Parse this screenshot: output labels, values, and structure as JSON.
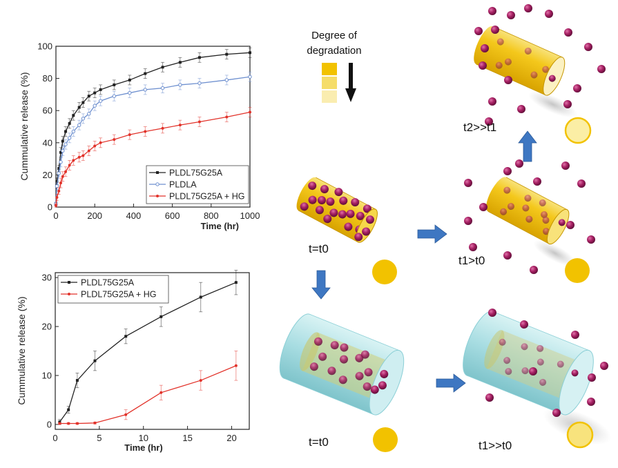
{
  "chart_data": [
    {
      "type": "line",
      "xlabel": "Time (hr)",
      "ylabel": "Cummulative release (%)",
      "xlim": [
        0,
        1000
      ],
      "ylim": [
        0,
        100
      ],
      "xticks": [
        "0",
        "200",
        "400",
        "600",
        "800",
        "1000"
      ],
      "yticks": [
        "0",
        "20",
        "40",
        "60",
        "80",
        "100"
      ],
      "legend": "bottom-right",
      "series": [
        {
          "name": "PLDL75G25A",
          "color": "#222222",
          "marker": "square",
          "points": [
            [
              0,
              2
            ],
            [
              5,
              16
            ],
            [
              15,
              24
            ],
            [
              25,
              34
            ],
            [
              35,
              41
            ],
            [
              50,
              47
            ],
            [
              70,
              52
            ],
            [
              90,
              57
            ],
            [
              120,
              62
            ],
            [
              140,
              65
            ],
            [
              170,
              69
            ],
            [
              200,
              71
            ],
            [
              230,
              73
            ],
            [
              300,
              76
            ],
            [
              380,
              79
            ],
            [
              460,
              83
            ],
            [
              550,
              87
            ],
            [
              640,
              90
            ],
            [
              740,
              93
            ],
            [
              880,
              95
            ],
            [
              1000,
              96
            ]
          ],
          "errors": [
            1,
            2,
            2,
            3,
            3,
            3,
            3,
            3,
            3,
            3,
            3,
            3,
            3,
            3,
            3,
            3,
            3,
            3,
            3,
            3,
            3
          ]
        },
        {
          "name": "PLDLA",
          "color": "#6d8fcf",
          "marker": "circle",
          "points": [
            [
              0,
              2
            ],
            [
              5,
              13
            ],
            [
              15,
              21
            ],
            [
              25,
              28
            ],
            [
              35,
              35
            ],
            [
              50,
              39
            ],
            [
              70,
              43
            ],
            [
              90,
              47
            ],
            [
              120,
              51
            ],
            [
              140,
              55
            ],
            [
              170,
              58
            ],
            [
              200,
              63
            ],
            [
              230,
              66
            ],
            [
              300,
              69
            ],
            [
              380,
              71
            ],
            [
              460,
              73
            ],
            [
              550,
              74
            ],
            [
              640,
              76
            ],
            [
              740,
              77
            ],
            [
              880,
              79
            ],
            [
              1000,
              81
            ]
          ],
          "errors": [
            1,
            2,
            2,
            3,
            3,
            3,
            3,
            3,
            3,
            3,
            3,
            3,
            3,
            3,
            3,
            3,
            3,
            3,
            3,
            3,
            3
          ]
        },
        {
          "name": "PLDL75G25A + HG",
          "color": "#e2322a",
          "marker": "circle",
          "points": [
            [
              0,
              1
            ],
            [
              5,
              6
            ],
            [
              15,
              10
            ],
            [
              25,
              15
            ],
            [
              35,
              19
            ],
            [
              50,
              22
            ],
            [
              70,
              26
            ],
            [
              90,
              29
            ],
            [
              120,
              31
            ],
            [
              140,
              32
            ],
            [
              170,
              35
            ],
            [
              200,
              38
            ],
            [
              230,
              40
            ],
            [
              300,
              42
            ],
            [
              380,
              45
            ],
            [
              460,
              47
            ],
            [
              550,
              49
            ],
            [
              640,
              51
            ],
            [
              740,
              53
            ],
            [
              880,
              56
            ],
            [
              1000,
              59
            ]
          ],
          "errors": [
            1,
            2,
            2,
            3,
            3,
            3,
            3,
            3,
            3,
            3,
            3,
            3,
            3,
            3,
            3,
            3,
            3,
            3,
            3,
            3,
            3
          ]
        }
      ]
    },
    {
      "type": "line",
      "xlabel": "Time (hr)",
      "ylabel": "Cummulative release (%)",
      "xlim": [
        0,
        22
      ],
      "ylim": [
        -1,
        31
      ],
      "xticks": [
        "0",
        "5",
        "10",
        "15",
        "20"
      ],
      "yticks": [
        "0",
        "10",
        "20",
        "30"
      ],
      "legend": "top-left",
      "series": [
        {
          "name": "PLDL75G25A",
          "color": "#222222",
          "marker": "square",
          "points": [
            [
              0.5,
              0.5
            ],
            [
              1.5,
              3
            ],
            [
              2.5,
              9
            ],
            [
              4.5,
              13
            ],
            [
              8,
              18
            ],
            [
              12,
              22
            ],
            [
              16.5,
              26
            ],
            [
              20.5,
              29
            ]
          ],
          "errors": [
            0.5,
            0.7,
            1.5,
            2,
            1.5,
            2,
            3,
            2.5
          ]
        },
        {
          "name": "PLDL75G25A + HG",
          "color": "#e2322a",
          "marker": "circle",
          "points": [
            [
              0.5,
              0.2
            ],
            [
              1.5,
              0.2
            ],
            [
              2.5,
              0.2
            ],
            [
              4.5,
              0.3
            ],
            [
              8,
              2
            ],
            [
              12,
              6.5
            ],
            [
              16.5,
              9
            ],
            [
              20.5,
              12
            ]
          ],
          "errors": [
            0.2,
            0.2,
            0.2,
            0.2,
            1,
            1.5,
            2,
            3
          ]
        }
      ]
    }
  ],
  "diagram": {
    "legend_title": "Degree of degradation",
    "legend_colors": [
      "#f2c200",
      "#f5dd6a",
      "#faedb0"
    ],
    "labels": {
      "top_right": "t2>>t1",
      "mid_left": "t=t0",
      "mid_right": "t1>t0",
      "bottom_left": "t=t0",
      "bottom_right": "t1>>t0"
    },
    "colors": {
      "polymer": "#f2c200",
      "particle": "#9b1d5c",
      "arrow": "#3e77c2",
      "hydrogel": "#b8e6ea"
    }
  }
}
